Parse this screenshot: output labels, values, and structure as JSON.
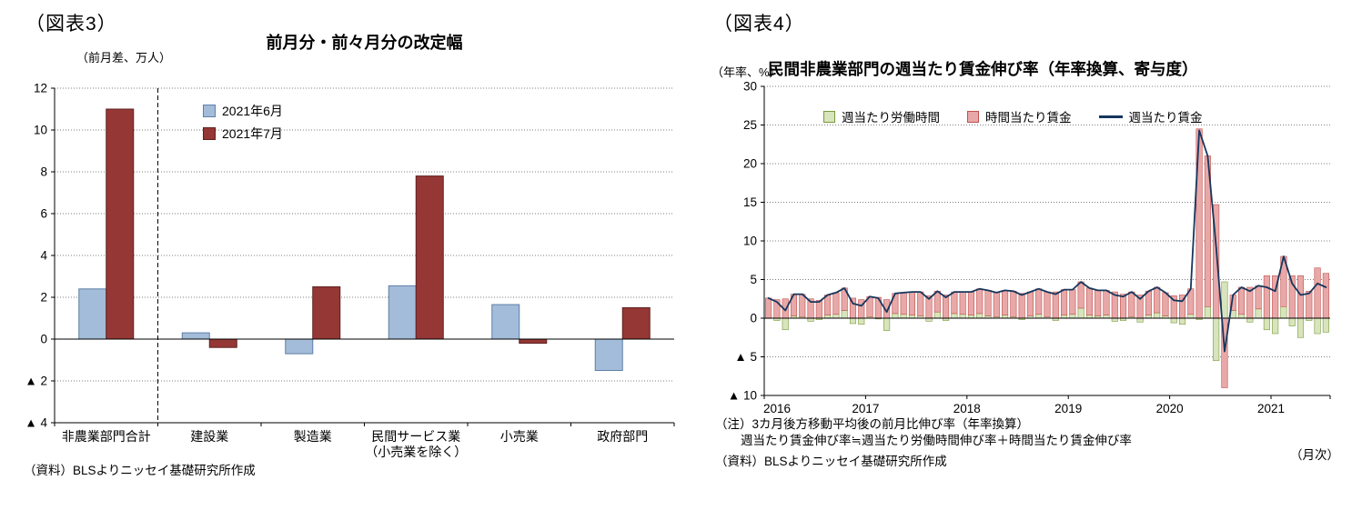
{
  "chart_data": [
    {
      "type": "bar",
      "tag": "（図表3）",
      "title": "前月分・前々月分の改定幅",
      "unit_label": "（前月差、万人）",
      "source": "（資料）BLSよりニッセイ基礎研究所作成",
      "categories": [
        "非農業部門合計",
        "建設業",
        "製造業",
        "民間サービス業\n（小売業を除く）",
        "小売業",
        "政府部門"
      ],
      "series": [
        {
          "name": "2021年6月",
          "color": "#A3BCD9",
          "border": "#5F7FA6",
          "values": [
            2.4,
            0.3,
            -0.7,
            2.55,
            1.65,
            -1.5
          ]
        },
        {
          "name": "2021年7月",
          "color": "#943735",
          "border": "#5F2120",
          "values": [
            11.0,
            -0.4,
            2.5,
            7.8,
            -0.2,
            1.5
          ]
        }
      ],
      "ylim": [
        -4,
        12
      ],
      "ytick_step": 2,
      "negative_prefix": "▲",
      "separator_after_category": 0,
      "grid": "dotted-horizontal",
      "legend_position": "inside-top-left"
    },
    {
      "type": "stacked-bar-line",
      "tag": "（図表4）",
      "title": "民間非農業部門の週当たり賃金伸び率（年率換算、寄与度）",
      "unit_label": "（年率、%）",
      "x_unit_label": "（月次）",
      "notes": [
        "（注）3カ月後方移動平均後の前月比伸び率（年率換算）",
        "週当たり賃金伸び率≒週当たり労働時間伸び率＋時間当たり賃金伸び率",
        "（資料）BLSよりニッセイ基礎研究所作成"
      ],
      "ylim": [
        -10,
        30
      ],
      "ytick_step": 5,
      "negative_prefix": "▲",
      "grid": "dotted-horizontal",
      "legend_position": "inside-top",
      "year_ticks": [
        "2016",
        "2017",
        "2018",
        "2019",
        "2020",
        "2021"
      ],
      "x": [
        "2016-01",
        "2016-02",
        "2016-03",
        "2016-04",
        "2016-05",
        "2016-06",
        "2016-07",
        "2016-08",
        "2016-09",
        "2016-10",
        "2016-11",
        "2016-12",
        "2017-01",
        "2017-02",
        "2017-03",
        "2017-04",
        "2017-05",
        "2017-06",
        "2017-07",
        "2017-08",
        "2017-09",
        "2017-10",
        "2017-11",
        "2017-12",
        "2018-01",
        "2018-02",
        "2018-03",
        "2018-04",
        "2018-05",
        "2018-06",
        "2018-07",
        "2018-08",
        "2018-09",
        "2018-10",
        "2018-11",
        "2018-12",
        "2019-01",
        "2019-02",
        "2019-03",
        "2019-04",
        "2019-05",
        "2019-06",
        "2019-07",
        "2019-08",
        "2019-09",
        "2019-10",
        "2019-11",
        "2019-12",
        "2020-01",
        "2020-02",
        "2020-03",
        "2020-04",
        "2020-05",
        "2020-06",
        "2020-07",
        "2020-08",
        "2020-09",
        "2020-10",
        "2020-11",
        "2020-12",
        "2021-01",
        "2021-02",
        "2021-03",
        "2021-04",
        "2021-05",
        "2021-06",
        "2021-07"
      ],
      "series": [
        {
          "name": "週当たり労働時間",
          "type": "bar",
          "color": "#D8E4BC",
          "border": "#7A9A3D",
          "values": [
            0.0,
            -0.3,
            -1.5,
            0.3,
            0.2,
            -0.4,
            -0.2,
            0.4,
            0.5,
            1.0,
            -0.7,
            -0.8,
            0.2,
            -0.1,
            -1.6,
            0.6,
            0.5,
            0.4,
            0.3,
            -0.4,
            0.8,
            -0.3,
            0.6,
            0.5,
            0.4,
            0.6,
            0.3,
            0.2,
            0.4,
            0.2,
            -0.2,
            0.3,
            0.5,
            0.2,
            -0.3,
            0.4,
            0.5,
            1.3,
            0.4,
            0.3,
            0.4,
            -0.4,
            -0.3,
            0.2,
            -0.5,
            0.4,
            0.7,
            0.3,
            -0.6,
            -0.8,
            0.5,
            -0.2,
            1.5,
            -5.5,
            4.7,
            1.0,
            0.5,
            -0.5,
            1.2,
            -1.5,
            -2.0,
            1.5,
            -1.0,
            -2.5,
            -0.3,
            -2.0,
            -1.8
          ]
        },
        {
          "name": "時間当たり賃金",
          "type": "bar",
          "color": "#E8A8A8",
          "border": "#C0504D",
          "values": [
            2.6,
            2.4,
            2.5,
            2.8,
            2.9,
            2.5,
            2.3,
            2.6,
            2.8,
            2.9,
            2.6,
            2.4,
            2.6,
            2.7,
            2.4,
            2.6,
            2.8,
            3.0,
            3.1,
            2.9,
            2.7,
            3.0,
            2.8,
            2.9,
            3.0,
            3.2,
            3.3,
            3.1,
            3.2,
            3.3,
            3.2,
            3.1,
            3.3,
            3.2,
            3.4,
            3.3,
            3.2,
            3.4,
            3.5,
            3.3,
            3.2,
            3.4,
            3.1,
            3.2,
            3.0,
            3.1,
            3.3,
            3.0,
            2.9,
            3.0,
            3.3,
            24.5,
            19.5,
            14.7,
            -9.0,
            2.0,
            3.5,
            4.0,
            3.0,
            5.5,
            5.5,
            6.5,
            5.5,
            5.5,
            3.5,
            6.5,
            5.8
          ]
        },
        {
          "name": "週当たり賃金",
          "type": "line",
          "color": "#16365C",
          "values": [
            2.6,
            2.1,
            1.0,
            3.1,
            3.1,
            2.1,
            2.1,
            3.0,
            3.3,
            3.9,
            1.9,
            1.6,
            2.8,
            2.6,
            0.8,
            3.2,
            3.3,
            3.4,
            3.4,
            2.5,
            3.5,
            2.7,
            3.4,
            3.4,
            3.4,
            3.8,
            3.6,
            3.3,
            3.6,
            3.5,
            3.0,
            3.4,
            3.8,
            3.4,
            3.1,
            3.7,
            3.7,
            4.7,
            3.9,
            3.6,
            3.6,
            3.0,
            2.8,
            3.4,
            2.5,
            3.5,
            4.0,
            3.3,
            2.3,
            2.2,
            3.8,
            24.3,
            21.0,
            9.2,
            -4.3,
            3.0,
            4.0,
            3.5,
            4.2,
            4.0,
            3.5,
            8.0,
            4.5,
            3.0,
            3.2,
            4.5,
            4.0
          ]
        }
      ]
    }
  ]
}
